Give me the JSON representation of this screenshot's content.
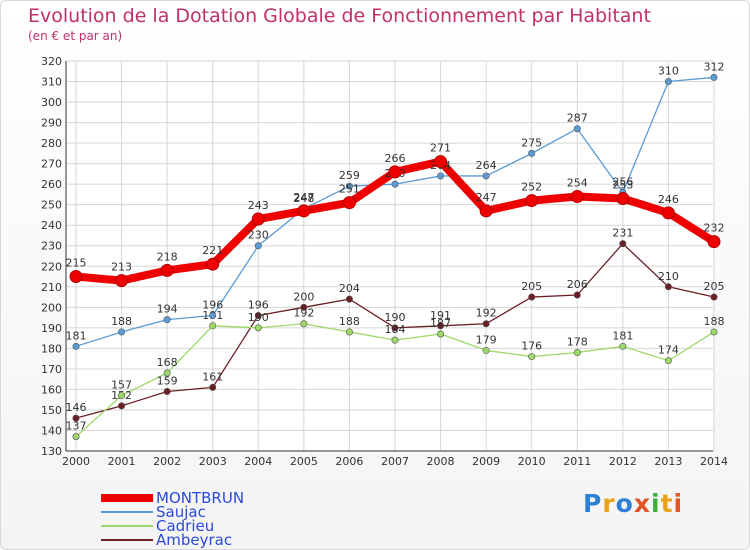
{
  "title": "Evolution de la Dotation Globale de Fonctionnement par Habitant",
  "subtitle": "(en € et par an)",
  "logo": "Proxiti",
  "chart_data": {
    "type": "line",
    "title": "Evolution de la Dotation Globale de Fonctionnement par Habitant",
    "subtitle": "(en € et par an)",
    "x": [
      "2000",
      "2001",
      "2002",
      "2003",
      "2004",
      "2005",
      "2006",
      "2007",
      "2008",
      "2009",
      "2010",
      "2011",
      "2012",
      "2013",
      "2014"
    ],
    "ylim": [
      130,
      320
    ],
    "yticks": [
      130,
      140,
      150,
      160,
      170,
      180,
      190,
      200,
      210,
      220,
      230,
      240,
      250,
      260,
      270,
      280,
      290,
      300,
      310,
      320
    ],
    "grid": true,
    "legend_position": "bottom-left",
    "series": [
      {
        "name": "MONTBRUN",
        "color": "#ee0000",
        "values": [
          215,
          213,
          218,
          221,
          243,
          247,
          251,
          266,
          271,
          247,
          252,
          254,
          253,
          246,
          232
        ]
      },
      {
        "name": "Saujac",
        "color": "#5b9bd5",
        "values": [
          181,
          188,
          194,
          196,
          230,
          248,
          259,
          260,
          264,
          264,
          275,
          287,
          256,
          310,
          312
        ]
      },
      {
        "name": "Cadrieu",
        "color": "#9ed86a",
        "values": [
          137,
          157,
          168,
          191,
          190,
          192,
          188,
          184,
          187,
          179,
          176,
          178,
          181,
          174,
          188
        ]
      },
      {
        "name": "Ambeyrac",
        "color": "#6b1f24",
        "values": [
          146,
          152,
          159,
          161,
          196,
          200,
          204,
          190,
          191,
          192,
          205,
          206,
          231,
          210,
          205
        ]
      }
    ]
  }
}
